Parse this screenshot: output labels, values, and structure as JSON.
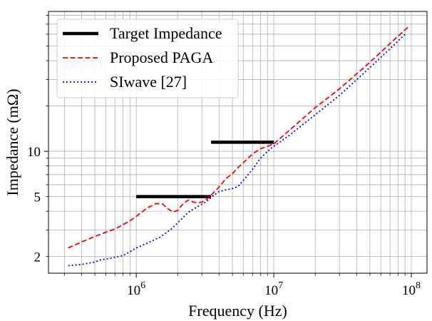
{
  "chart_data": {
    "type": "line",
    "title": "",
    "xlabel": "Frequency (Hz)",
    "ylabel": "Impedance (mΩ)",
    "xscale": "log",
    "yscale": "log",
    "xlim": [
      230000,
      130000000
    ],
    "ylim": [
      1.55,
      85
    ],
    "grid": true,
    "legend_position": "top-left",
    "x_major_ticks": [
      {
        "value": 1000000,
        "base": "10",
        "exp": "6"
      },
      {
        "value": 10000000,
        "base": "10",
        "exp": "7"
      },
      {
        "value": 100000000,
        "base": "10",
        "exp": "8"
      }
    ],
    "y_ticks": [
      {
        "value": 2,
        "label": "2"
      },
      {
        "value": 5,
        "label": "5"
      },
      {
        "value": 10,
        "label": "10"
      }
    ],
    "series": [
      {
        "name": "Target Impedance",
        "color": "#000000",
        "style": "solid",
        "segments": [
          [
            [
              1000000,
              5
            ],
            [
              3500000,
              5
            ]
          ],
          [
            [
              3500000,
              11.5
            ],
            [
              10000000,
              11.5
            ]
          ]
        ]
      },
      {
        "name": "Proposed PAGA",
        "color": "#ff0000",
        "style": "dashed",
        "points": [
          [
            320000,
            2.28
          ],
          [
            400000,
            2.5
          ],
          [
            500000,
            2.72
          ],
          [
            600000,
            2.9
          ],
          [
            700000,
            3.05
          ],
          [
            800000,
            3.25
          ],
          [
            900000,
            3.45
          ],
          [
            1000000,
            3.7
          ],
          [
            1200000,
            4.2
          ],
          [
            1400000,
            4.5
          ],
          [
            1550000,
            4.48
          ],
          [
            1700000,
            4.15
          ],
          [
            1850000,
            3.95
          ],
          [
            2000000,
            4.05
          ],
          [
            2200000,
            4.5
          ],
          [
            2400000,
            4.75
          ],
          [
            2600000,
            4.6
          ],
          [
            2800000,
            4.55
          ],
          [
            3000000,
            4.6
          ],
          [
            3300000,
            4.85
          ],
          [
            3600000,
            5.25
          ],
          [
            4000000,
            5.8
          ],
          [
            4500000,
            6.6
          ],
          [
            5000000,
            7.1
          ],
          [
            5500000,
            7.8
          ],
          [
            6000000,
            8.4
          ],
          [
            7000000,
            9.6
          ],
          [
            8000000,
            10.4
          ],
          [
            9000000,
            10.8
          ],
          [
            10000000,
            11.2
          ],
          [
            13000000,
            13.8
          ],
          [
            20000000,
            19.5
          ],
          [
            30000000,
            26
          ],
          [
            50000000,
            39
          ],
          [
            70000000,
            52
          ],
          [
            95000000,
            67
          ]
        ]
      },
      {
        "name": "SIwave [27]",
        "color": "#0000ff",
        "style": "dotted",
        "points": [
          [
            320000,
            1.74
          ],
          [
            400000,
            1.77
          ],
          [
            500000,
            1.84
          ],
          [
            550000,
            1.9
          ],
          [
            650000,
            1.95
          ],
          [
            800000,
            2.03
          ],
          [
            900000,
            2.15
          ],
          [
            1000000,
            2.28
          ],
          [
            1200000,
            2.45
          ],
          [
            1500000,
            2.7
          ],
          [
            1800000,
            3.05
          ],
          [
            2100000,
            3.5
          ],
          [
            2400000,
            3.95
          ],
          [
            2800000,
            4.3
          ],
          [
            3200000,
            4.6
          ],
          [
            3600000,
            5.05
          ],
          [
            4000000,
            5.4
          ],
          [
            4500000,
            5.55
          ],
          [
            5000000,
            5.65
          ],
          [
            5500000,
            5.85
          ],
          [
            6000000,
            6.4
          ],
          [
            7000000,
            7.6
          ],
          [
            8000000,
            9.0
          ],
          [
            9000000,
            10.0
          ],
          [
            10000000,
            10.8
          ],
          [
            13000000,
            12.8
          ],
          [
            20000000,
            17.5
          ],
          [
            30000000,
            23.5
          ],
          [
            50000000,
            36
          ],
          [
            70000000,
            48
          ],
          [
            92000000,
            61
          ]
        ]
      }
    ]
  }
}
